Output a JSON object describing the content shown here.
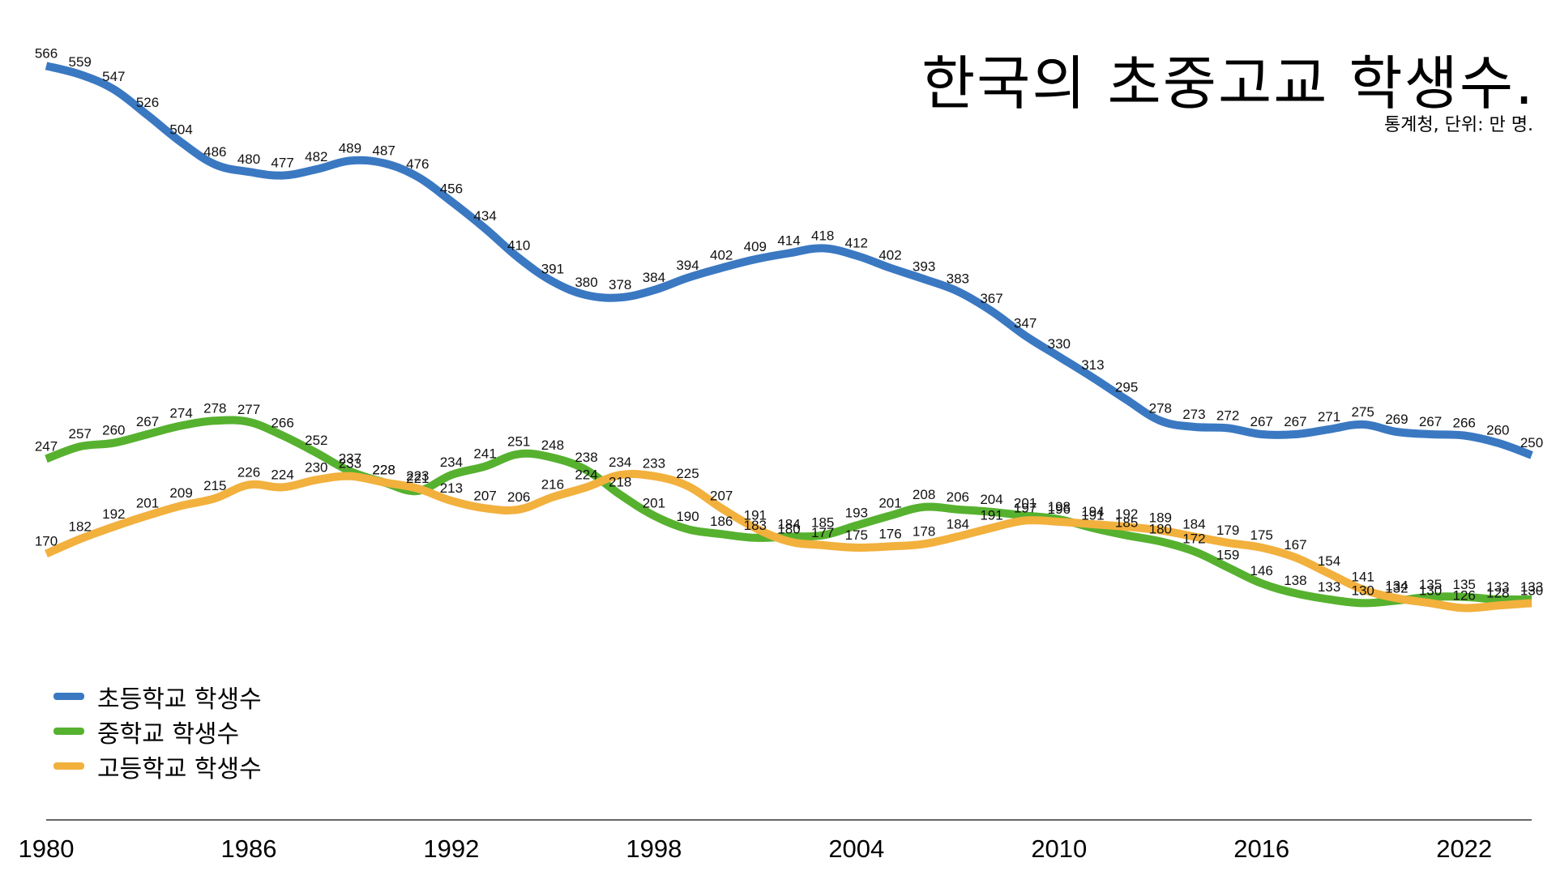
{
  "title": "한국의 초중고교 학생수.",
  "subtitle": "통계청, 단위: 만 명.",
  "chart_data": {
    "type": "line",
    "title": "한국의 초중고교 학생수.",
    "subtitle": "통계청, 단위: 만 명.",
    "xlabel": "",
    "ylabel": "",
    "x": [
      1980,
      1981,
      1982,
      1983,
      1984,
      1985,
      1986,
      1987,
      1988,
      1989,
      1990,
      1991,
      1992,
      1993,
      1994,
      1995,
      1996,
      1997,
      1998,
      1999,
      2000,
      2001,
      2002,
      2003,
      2004,
      2005,
      2006,
      2007,
      2008,
      2009,
      2010,
      2011,
      2012,
      2013,
      2014,
      2015,
      2016,
      2017,
      2018,
      2019,
      2020,
      2021,
      2022,
      2023,
      2024
    ],
    "x_ticks": [
      "1980",
      "1986",
      "1992",
      "1998",
      "2004",
      "2010",
      "2016",
      "2022"
    ],
    "ylim": [
      100,
      580
    ],
    "grid": false,
    "legend_position": "bottom-left",
    "series": [
      {
        "name": "초등학교 학생수",
        "color": "#3a78c2",
        "values": [
          566,
          559,
          547,
          526,
          504,
          486,
          480,
          477,
          482,
          489,
          487,
          476,
          456,
          434,
          410,
          391,
          380,
          378,
          384,
          394,
          402,
          409,
          414,
          418,
          412,
          402,
          393,
          383,
          367,
          347,
          330,
          313,
          295,
          278,
          273,
          272,
          267,
          267,
          271,
          275,
          269,
          267,
          266,
          260,
          250
        ]
      },
      {
        "name": "중학교 학생수",
        "color": "#56b12f",
        "values": [
          247,
          257,
          260,
          267,
          274,
          278,
          277,
          266,
          252,
          237,
          228,
          221,
          234,
          241,
          251,
          248,
          238,
          218,
          201,
          190,
          186,
          183,
          184,
          185,
          193,
          201,
          208,
          206,
          204,
          201,
          198,
          191,
          185,
          180,
          172,
          159,
          146,
          138,
          133,
          130,
          132,
          135,
          135,
          133,
          133
        ]
      },
      {
        "name": "고등학교 학생수",
        "color": "#f2b03d",
        "values": [
          170,
          182,
          192,
          201,
          209,
          215,
          226,
          224,
          230,
          233,
          228,
          223,
          213,
          207,
          206,
          216,
          224,
          234,
          233,
          225,
          207,
          191,
          180,
          177,
          175,
          176,
          178,
          184,
          191,
          197,
          196,
          194,
          192,
          189,
          184,
          179,
          175,
          167,
          154,
          141,
          134,
          130,
          126,
          128,
          130
        ]
      }
    ]
  }
}
